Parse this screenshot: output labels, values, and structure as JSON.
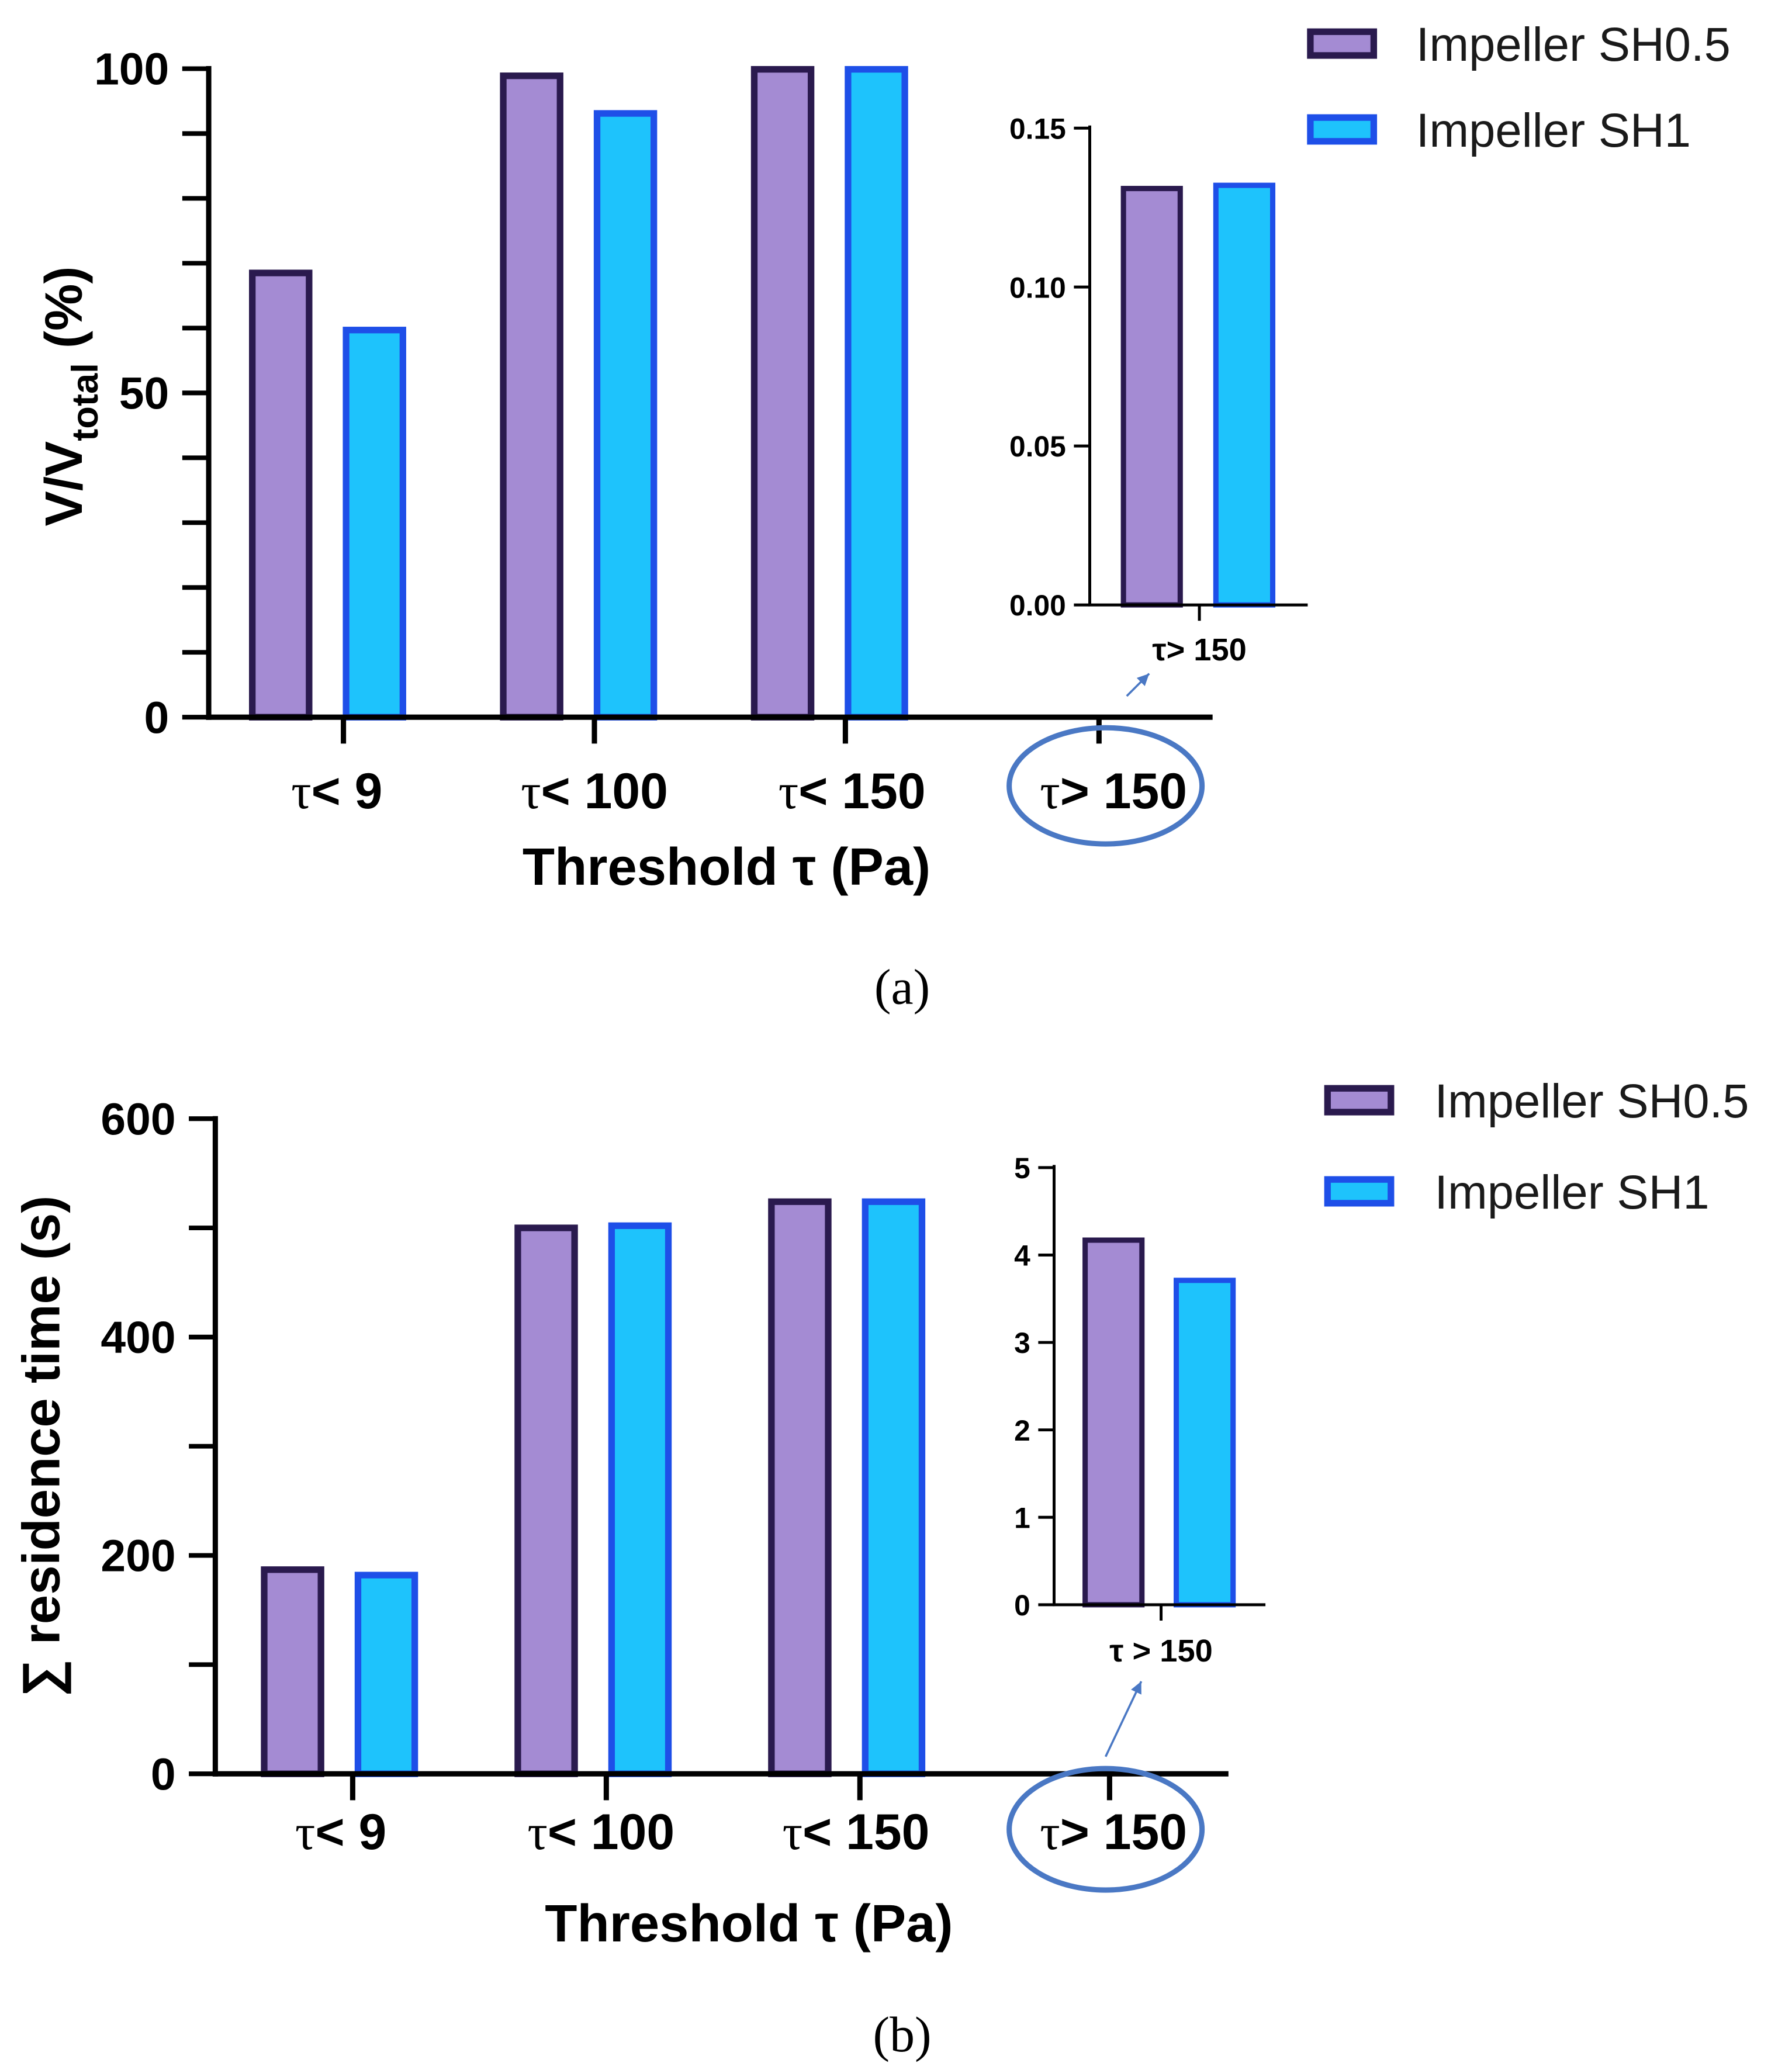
{
  "colors": {
    "sh05_fill": "#A48BD3",
    "sh05_edge": "#2A1A4E",
    "sh1_fill": "#1EC3FC",
    "sh1_edge": "#1E4FE8",
    "highlight": "#4A78C4"
  },
  "legend": [
    "Impeller SH0.5",
    "Impeller SH1"
  ],
  "chart_data": [
    {
      "panel": "(a)",
      "type": "bar",
      "categories": [
        {
          "sym": "τ",
          "op": "< 9"
        },
        {
          "sym": "τ",
          "op": "< 100"
        },
        {
          "sym": "τ",
          "op": "< 150"
        },
        {
          "sym": "τ",
          "op": "> 150"
        }
      ],
      "series": [
        {
          "name": "Impeller SH0.5",
          "values": [
            68.5,
            98.9,
            99.9,
            0.13
          ]
        },
        {
          "name": "Impeller SH1",
          "values": [
            59.7,
            93.1,
            99.9,
            0.13
          ]
        }
      ],
      "xlabel": "Threshold τ (Pa)",
      "ylabel_main": "V/V",
      "ylabel_sub": "total",
      "ylabel_tail": " (%)",
      "ylim": [
        0,
        100
      ],
      "yticks": [
        "0",
        "50",
        "100"
      ],
      "inset": {
        "category": "τ> 150",
        "values": [
          0.131,
          0.132
        ],
        "ylim": [
          0,
          0.15
        ],
        "yticks": [
          "0.00",
          "0.05",
          "0.10",
          "0.15"
        ]
      }
    },
    {
      "panel": "(b)",
      "type": "bar",
      "categories": [
        {
          "sym": "τ",
          "op": "< 9"
        },
        {
          "sym": "τ",
          "op": "< 100"
        },
        {
          "sym": "τ",
          "op": "< 150"
        },
        {
          "sym": "τ",
          "op": "> 150"
        }
      ],
      "series": [
        {
          "name": "Impeller SH0.5",
          "values": [
            187,
            500,
            524,
            4.17
          ]
        },
        {
          "name": "Impeller SH1",
          "values": [
            182,
            502,
            524,
            3.71
          ]
        }
      ],
      "xlabel": "Threshold τ (Pa)",
      "ylabel": "∑ residence time (s)",
      "ylim": [
        0,
        600
      ],
      "yticks": [
        "0",
        "200",
        "400",
        "600"
      ],
      "inset": {
        "category": "τ > 150",
        "values": [
          4.17,
          3.71
        ],
        "ylim": [
          0,
          5
        ],
        "yticks": [
          "0",
          "1",
          "2",
          "3",
          "4",
          "5"
        ]
      }
    }
  ]
}
